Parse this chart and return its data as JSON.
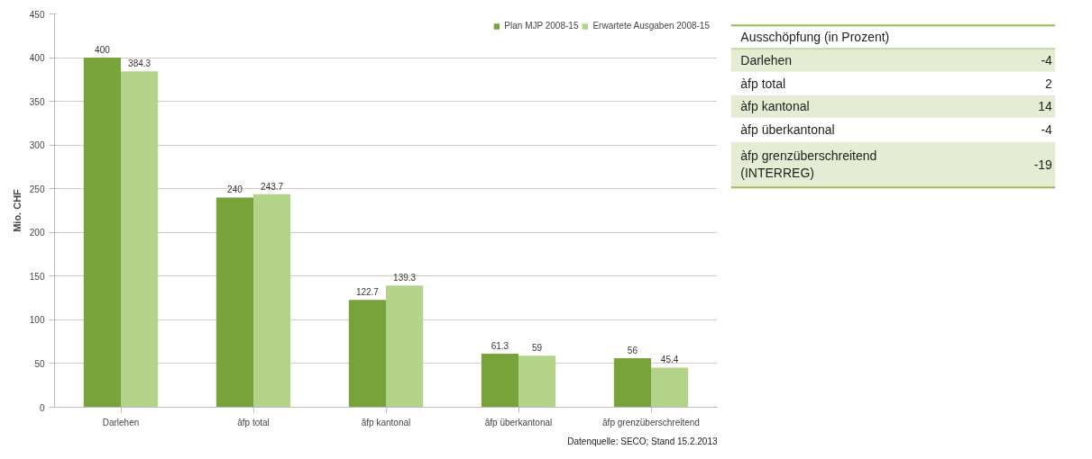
{
  "chart_data": [
    {
      "type": "bar",
      "ylabel": "Mio. CHF",
      "categories": [
        "Darlehen",
        "âfp total",
        "âfp kantonal",
        "âfp überkantonal",
        "âfp grenzüberschreitend"
      ],
      "series": [
        {
          "name": "Plan MJP 2008-15",
          "color": "#77a33a",
          "values": [
            400,
            240,
            122.7,
            61.3,
            56
          ]
        },
        {
          "name": "Erwartete Ausgaben 2008-15",
          "color": "#b3d38a",
          "values": [
            384.3,
            243.7,
            139.3,
            59,
            45.4
          ]
        }
      ],
      "ylim": [
        0,
        450
      ],
      "yticks": [
        0,
        50,
        100,
        150,
        200,
        250,
        300,
        350,
        400,
        450
      ],
      "grid": "y",
      "legend": "top right",
      "data_labels": true,
      "annotations": [
        "Datenquelle: SECO; Stand 15.2.2013"
      ]
    },
    {
      "type": "other",
      "title": "Ausschöpfung (in Prozent)",
      "categories": [
        "Darlehen",
        "àfp total",
        "àfp kantonal",
        "àfp überkantonal",
        "àfp grenzüberschreitend\n(INTERREG)"
      ],
      "values": [
        -4,
        2,
        14,
        -4,
        -19
      ],
      "data_labels": true,
      "color": "#e4ecd4"
    }
  ]
}
